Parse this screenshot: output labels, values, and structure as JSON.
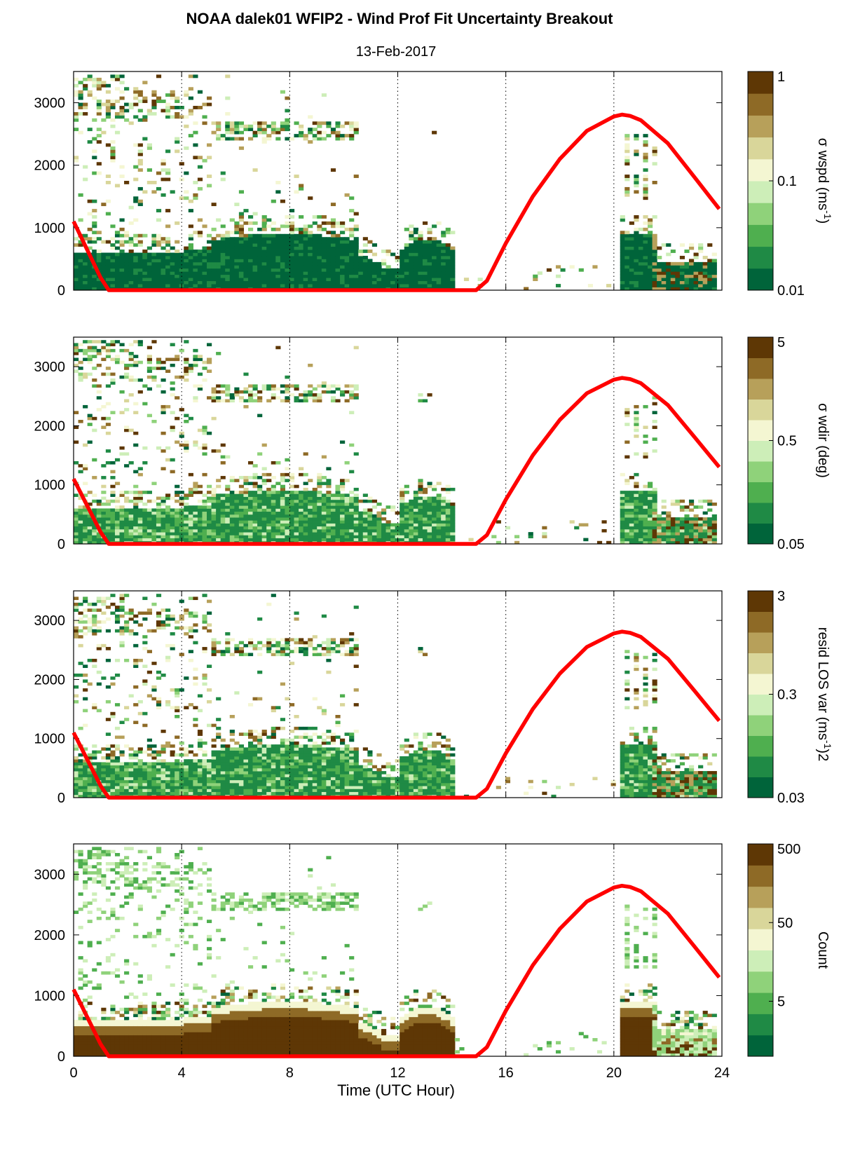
{
  "figure": {
    "title": "NOAA dalek01 WFIP2 - Wind Prof Fit Uncertainty Breakout",
    "subtitle": "13-Feb-2017",
    "xlabel": "Time (UTC Hour)"
  },
  "colors": {
    "curve": "#ff0000",
    "colormap": [
      "#00643a",
      "#1f8a45",
      "#4faf4f",
      "#8fd27a",
      "#cdeeb8",
      "#f4f6d2",
      "#d9d69a",
      "#b7a05a",
      "#8e6a26",
      "#5e3705"
    ]
  },
  "chart_data": [
    {
      "type": "heatmap",
      "panel": 1,
      "x_range": [
        0,
        24
      ],
      "y_range": [
        0,
        3500
      ],
      "xticks": [
        0,
        4,
        8,
        12,
        16,
        20,
        24
      ],
      "yticks": [
        0,
        1000,
        2000,
        3000
      ],
      "vertical_grid": [
        4,
        8,
        12,
        16,
        20
      ],
      "colorbar": {
        "label": "σ wspd (ms-1)",
        "label_main": "σ wspd (ms",
        "label_sup": "-1",
        "label_end": ")",
        "scale": "log",
        "range": [
          0.01,
          1
        ],
        "ticks": [
          0.01,
          0.1,
          1
        ],
        "ticklabels": [
          "0.01",
          "0.1",
          "1"
        ]
      }
    },
    {
      "type": "heatmap",
      "panel": 2,
      "x_range": [
        0,
        24
      ],
      "y_range": [
        0,
        3500
      ],
      "xticks": [
        0,
        4,
        8,
        12,
        16,
        20,
        24
      ],
      "yticks": [
        0,
        1000,
        2000,
        3000
      ],
      "vertical_grid": [
        4,
        8,
        12,
        16,
        20
      ],
      "colorbar": {
        "label": "σ wdir (deg)",
        "label_main": "σ wdir (deg)",
        "label_sup": "",
        "label_end": "",
        "scale": "log",
        "range": [
          0.05,
          5
        ],
        "ticks": [
          0.05,
          0.5,
          5
        ],
        "ticklabels": [
          "0.05",
          "0.5",
          "5"
        ]
      }
    },
    {
      "type": "heatmap",
      "panel": 3,
      "x_range": [
        0,
        24
      ],
      "y_range": [
        0,
        3500
      ],
      "xticks": [
        0,
        4,
        8,
        12,
        16,
        20,
        24
      ],
      "yticks": [
        0,
        1000,
        2000,
        3000
      ],
      "vertical_grid": [
        4,
        8,
        12,
        16,
        20
      ],
      "colorbar": {
        "label": "resid LOS var (ms-1)2",
        "label_main": "resid LOS var (ms",
        "label_sup": "-1",
        "label_end": ")2",
        "scale": "log",
        "range": [
          0.03,
          3
        ],
        "ticks": [
          0.03,
          0.3,
          3
        ],
        "ticklabels": [
          "0.03",
          "0.3",
          "3"
        ]
      }
    },
    {
      "type": "heatmap",
      "panel": 4,
      "x_range": [
        0,
        24
      ],
      "y_range": [
        0,
        3500
      ],
      "xticks": [
        0,
        4,
        8,
        12,
        16,
        20,
        24
      ],
      "yticks": [
        0,
        1000,
        2000,
        3000
      ],
      "vertical_grid": [
        4,
        8,
        12,
        16,
        20
      ],
      "colorbar": {
        "label": "Count",
        "label_main": "Count",
        "label_sup": "",
        "label_end": "",
        "scale": "log",
        "range": [
          1,
          500
        ],
        "ticks": [
          5,
          50,
          500
        ],
        "ticklabels": [
          "5",
          "50",
          "500"
        ]
      }
    }
  ],
  "overlay_curve": {
    "description_points_x": [
      0.0,
      0.5,
      1.0,
      1.3,
      14.9,
      15.3,
      16.0,
      17.0,
      18.0,
      19.0,
      20.0,
      20.3,
      20.6,
      21.0,
      22.0,
      23.0,
      23.9
    ],
    "points_y": [
      1100,
      650,
      200,
      0,
      0,
      150,
      750,
      1500,
      2100,
      2550,
      2780,
      2810,
      2790,
      2720,
      2350,
      1800,
      1300
    ]
  }
}
